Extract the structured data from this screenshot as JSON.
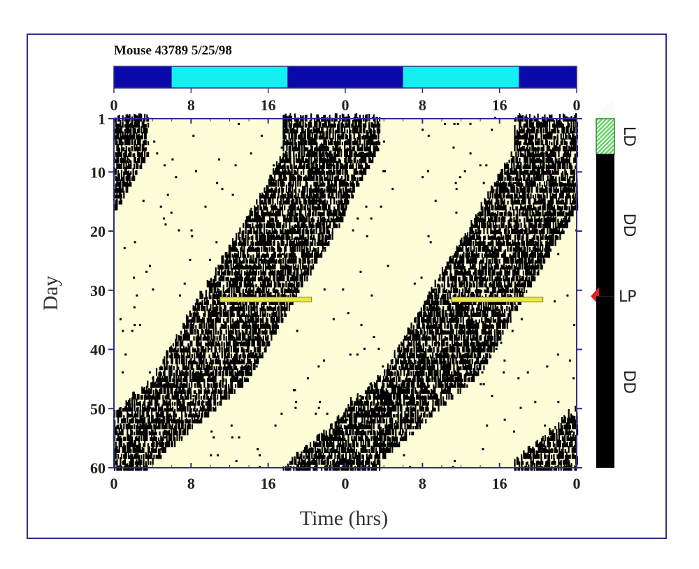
{
  "chart_data": {
    "type": "heatmap",
    "subtype": "double-plotted actogram",
    "title": "Mouse 43789  5/25/98",
    "xlabel": "Time (hrs)",
    "ylabel": "Day",
    "x_ticks": [
      "0",
      "8",
      "16",
      "0",
      "8",
      "16",
      "0"
    ],
    "x_range_hours": [
      0,
      48
    ],
    "y_ticks": [
      "1",
      "10",
      "20",
      "30",
      "40",
      "50",
      "60"
    ],
    "y_range_days": [
      1,
      60
    ],
    "light_dark_bar": [
      {
        "start": 0,
        "end": 6,
        "state": "dark",
        "color": "#0a0aa8"
      },
      {
        "start": 6,
        "end": 18,
        "state": "light",
        "color": "#12f0f0"
      },
      {
        "start": 18,
        "end": 30,
        "state": "dark",
        "color": "#0a0aa8"
      },
      {
        "start": 30,
        "end": 42,
        "state": "light",
        "color": "#12f0f0"
      },
      {
        "start": 42,
        "end": 48,
        "state": "dark",
        "color": "#0a0aa8"
      }
    ],
    "activity_onset_hours": [
      {
        "day": 1,
        "onset": 17.5
      },
      {
        "day": 7,
        "onset": 17.5
      },
      {
        "day": 20,
        "onset": 13
      },
      {
        "day": 32,
        "onset": 8.5
      },
      {
        "day": 45,
        "onset": 4
      },
      {
        "day": 60,
        "onset": 17.5
      }
    ],
    "activity_duration_hours": 10,
    "light_pulse": {
      "day": 31.5,
      "start_hour": 11,
      "end_hour": 20.5,
      "color": "#e8e84a"
    },
    "conditions": [
      {
        "label": "LD",
        "start_day": 1,
        "end_day": 7,
        "color": "#66cc66"
      },
      {
        "label": "DD",
        "start_day": 7,
        "end_day": 31,
        "color": "#000000"
      },
      {
        "label": "LP",
        "day": 31,
        "marker_color": "#e02020"
      },
      {
        "label": "DD",
        "start_day": 31,
        "end_day": 60,
        "color": "#000000"
      }
    ],
    "plot_background": "#fdfdd8",
    "axis_color": "#2f2f8a"
  }
}
